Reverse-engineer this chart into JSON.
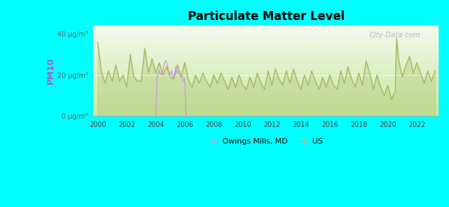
{
  "title": "Particulate Matter Level",
  "ylabel": "PM10",
  "background_color": "#00FFFF",
  "plot_bg_top": "#f5f9ee",
  "plot_bg_bottom": "#c8e8a0",
  "us_color": "#aab864",
  "owings_color": "#c8a0d8",
  "watermark": "City-Data.com",
  "yticks": [
    0,
    20,
    40
  ],
  "ytick_labels": [
    "0 μg/m³",
    "20 μg/m³",
    "40 μg/m³"
  ],
  "xmin": 1999.7,
  "xmax": 2023.5,
  "ymin": 0,
  "ymax": 44,
  "legend_owings": "Owings Mills, MD",
  "legend_us": "US",
  "us_data": [
    [
      2000.0,
      36
    ],
    [
      2000.25,
      22
    ],
    [
      2000.5,
      16
    ],
    [
      2000.75,
      22
    ],
    [
      2001.0,
      17
    ],
    [
      2001.25,
      25
    ],
    [
      2001.5,
      17
    ],
    [
      2001.75,
      20
    ],
    [
      2002.0,
      14
    ],
    [
      2002.25,
      30
    ],
    [
      2002.5,
      19
    ],
    [
      2002.75,
      17
    ],
    [
      2003.0,
      17
    ],
    [
      2003.25,
      33
    ],
    [
      2003.5,
      21
    ],
    [
      2003.75,
      28
    ],
    [
      2004.0,
      21
    ],
    [
      2004.25,
      26
    ],
    [
      2004.5,
      20
    ],
    [
      2004.75,
      24
    ],
    [
      2005.0,
      19
    ],
    [
      2005.25,
      18
    ],
    [
      2005.5,
      25
    ],
    [
      2005.75,
      19
    ],
    [
      2006.0,
      26
    ],
    [
      2006.25,
      18
    ],
    [
      2006.5,
      14
    ],
    [
      2006.75,
      20
    ],
    [
      2007.0,
      16
    ],
    [
      2007.25,
      21
    ],
    [
      2007.5,
      17
    ],
    [
      2007.75,
      14
    ],
    [
      2008.0,
      20
    ],
    [
      2008.25,
      16
    ],
    [
      2008.5,
      21
    ],
    [
      2008.75,
      17
    ],
    [
      2009.0,
      13
    ],
    [
      2009.25,
      19
    ],
    [
      2009.5,
      14
    ],
    [
      2009.75,
      20
    ],
    [
      2010.0,
      15
    ],
    [
      2010.25,
      13
    ],
    [
      2010.5,
      19
    ],
    [
      2010.75,
      14
    ],
    [
      2011.0,
      21
    ],
    [
      2011.25,
      16
    ],
    [
      2011.5,
      13
    ],
    [
      2011.75,
      22
    ],
    [
      2012.0,
      15
    ],
    [
      2012.25,
      23
    ],
    [
      2012.5,
      18
    ],
    [
      2012.75,
      15
    ],
    [
      2013.0,
      22
    ],
    [
      2013.25,
      16
    ],
    [
      2013.5,
      23
    ],
    [
      2013.75,
      17
    ],
    [
      2014.0,
      13
    ],
    [
      2014.25,
      20
    ],
    [
      2014.5,
      15
    ],
    [
      2014.75,
      22
    ],
    [
      2015.0,
      17
    ],
    [
      2015.25,
      13
    ],
    [
      2015.5,
      19
    ],
    [
      2015.75,
      14
    ],
    [
      2016.0,
      20
    ],
    [
      2016.25,
      15
    ],
    [
      2016.5,
      13
    ],
    [
      2016.75,
      22
    ],
    [
      2017.0,
      16
    ],
    [
      2017.25,
      24
    ],
    [
      2017.5,
      18
    ],
    [
      2017.75,
      14
    ],
    [
      2018.0,
      21
    ],
    [
      2018.25,
      15
    ],
    [
      2018.5,
      27
    ],
    [
      2018.75,
      21
    ],
    [
      2019.0,
      13
    ],
    [
      2019.25,
      20
    ],
    [
      2019.5,
      14
    ],
    [
      2019.75,
      10
    ],
    [
      2020.0,
      15
    ],
    [
      2020.25,
      8
    ],
    [
      2020.5,
      12
    ],
    [
      2020.6,
      38
    ],
    [
      2020.75,
      27
    ],
    [
      2021.0,
      19
    ],
    [
      2021.25,
      25
    ],
    [
      2021.5,
      29
    ],
    [
      2021.75,
      21
    ],
    [
      2022.0,
      26
    ],
    [
      2022.25,
      21
    ],
    [
      2022.5,
      16
    ],
    [
      2022.75,
      22
    ],
    [
      2023.0,
      17
    ],
    [
      2023.25,
      22
    ]
  ],
  "owings_data": [
    [
      2004.0,
      0
    ],
    [
      2004.1,
      19
    ],
    [
      2004.25,
      22
    ],
    [
      2004.4,
      20
    ],
    [
      2004.5,
      22
    ],
    [
      2004.6,
      26
    ],
    [
      2004.7,
      27
    ],
    [
      2004.8,
      25
    ],
    [
      2004.9,
      22
    ],
    [
      2005.0,
      20
    ],
    [
      2005.1,
      22
    ],
    [
      2005.2,
      18
    ],
    [
      2005.3,
      21
    ],
    [
      2005.4,
      24
    ],
    [
      2005.5,
      21
    ],
    [
      2005.6,
      22
    ],
    [
      2005.7,
      19
    ],
    [
      2005.8,
      20
    ],
    [
      2005.9,
      17
    ],
    [
      2006.0,
      18
    ],
    [
      2006.1,
      0
    ]
  ]
}
